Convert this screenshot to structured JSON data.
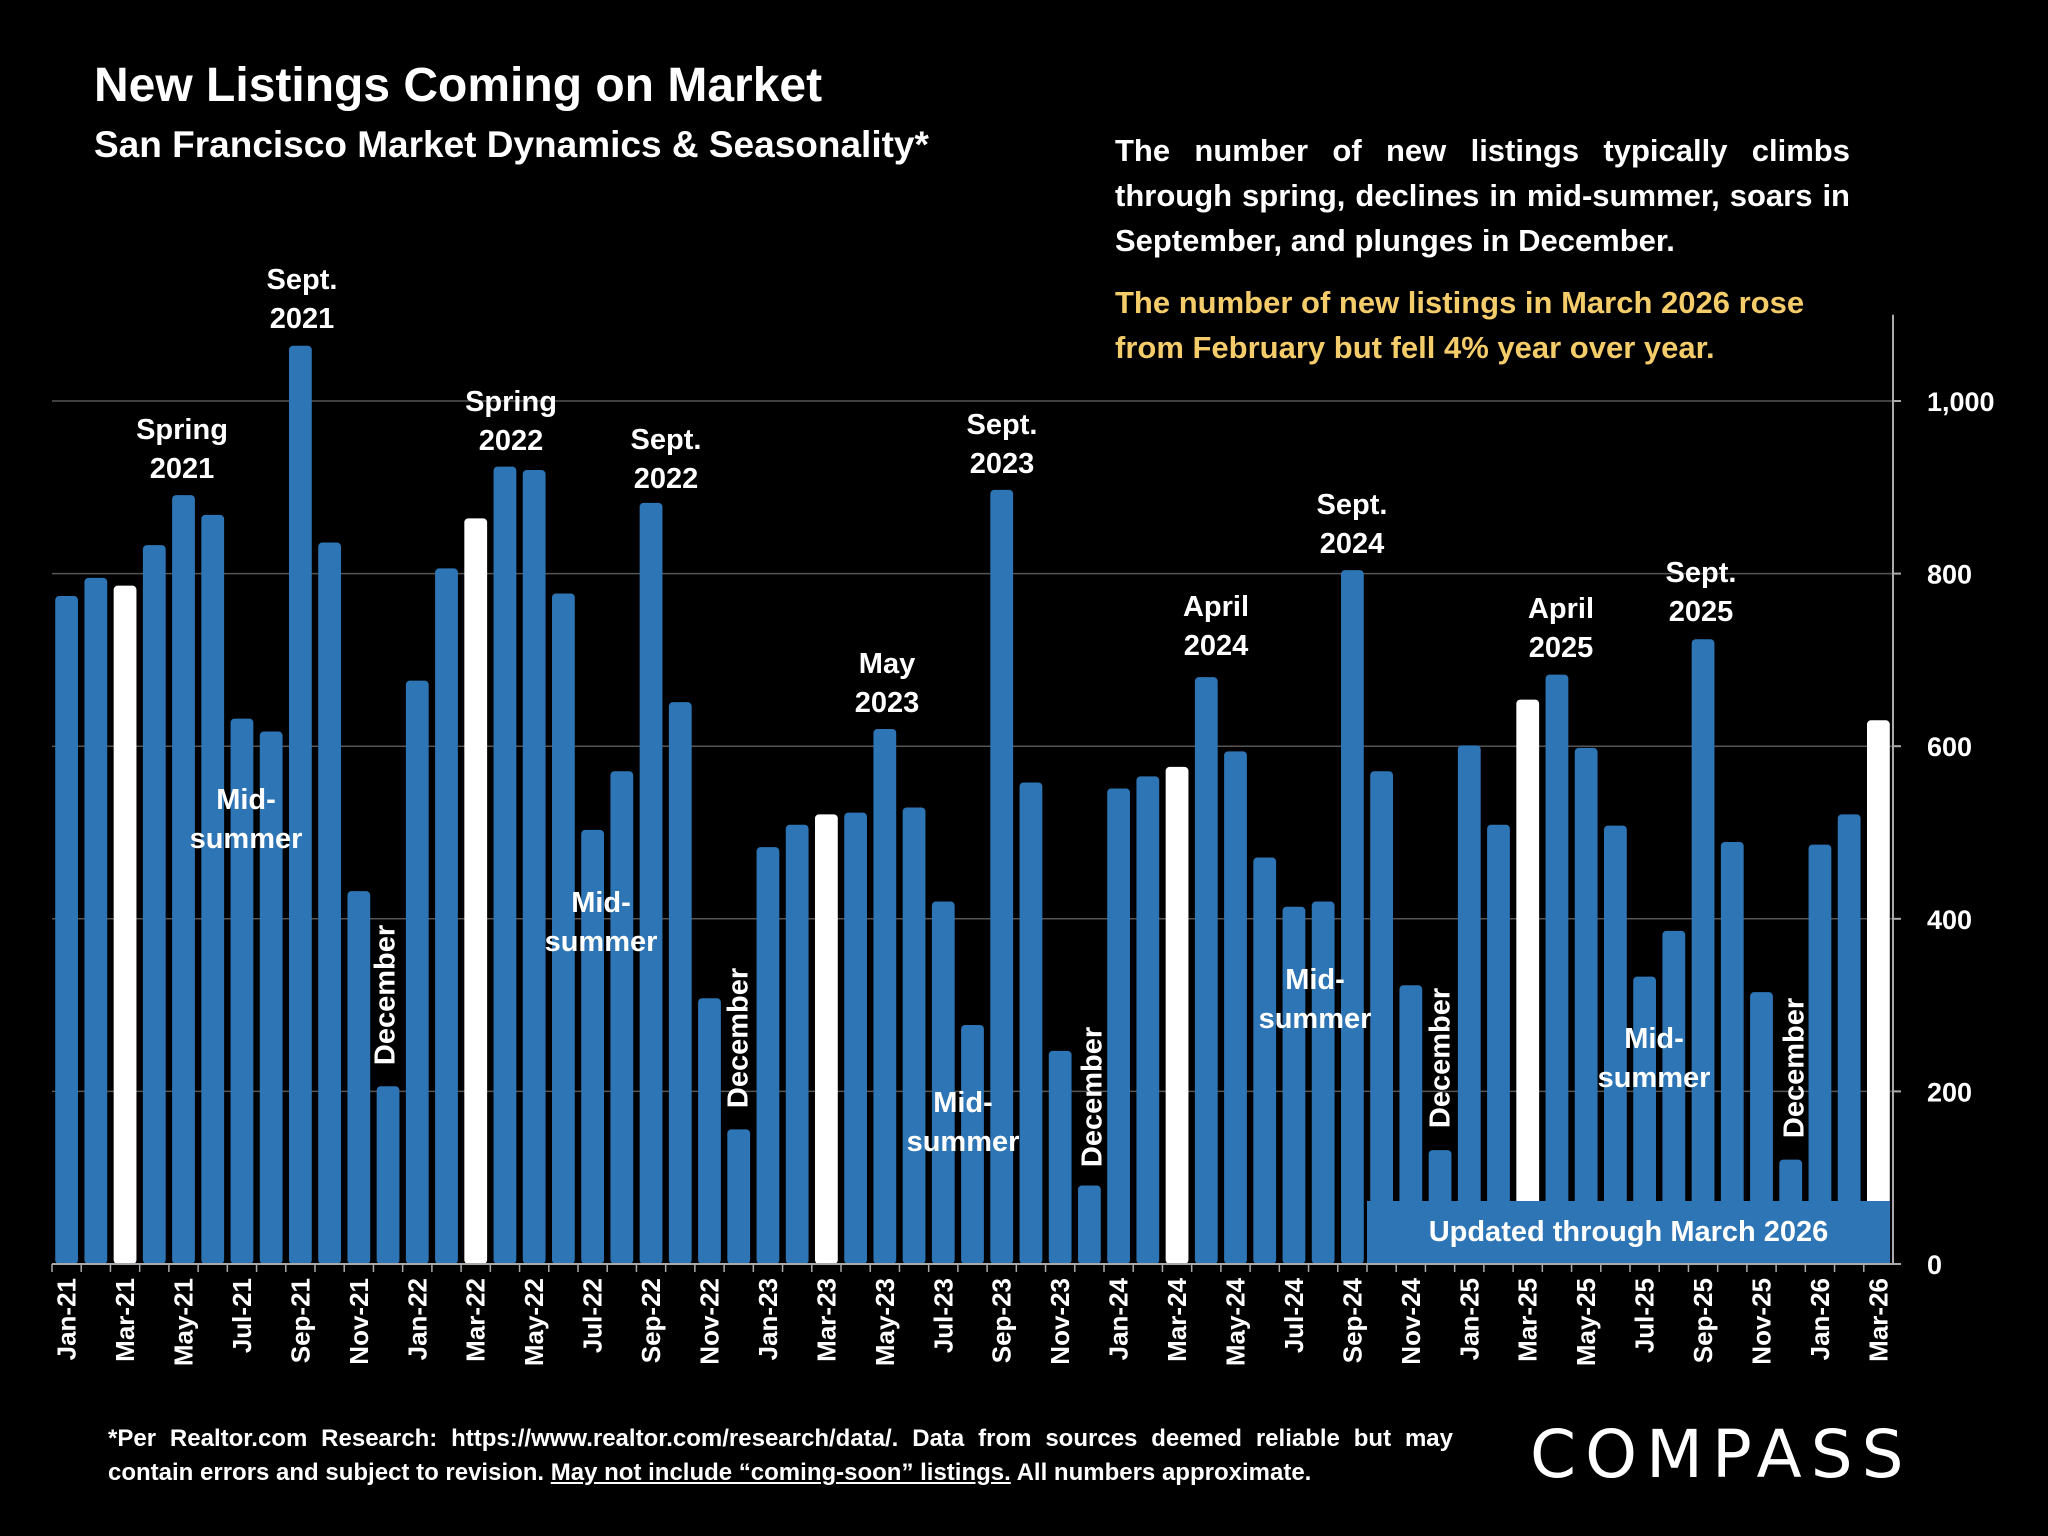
{
  "title": "New Listings Coming on Market",
  "subtitle": "San Francisco Market Dynamics & Seasonality*",
  "description": "The number of new listings typically climbs through spring, declines in mid-summer, soars in September, and plunges in December.",
  "highlight": "The number of new listings in March 2026 rose from February but fell 4% year over year.",
  "updated_label": "Updated through March 2026",
  "footer": {
    "text_a": "*Per Realtor.com Research:  https://www.realtor.com/research/data/. Data from sources deemed reliable but may contain errors and subject to revision. ",
    "underlined": "May not include “coming-soon” listings.",
    "text_b": " All numbers approximate."
  },
  "logo": "COMPASS",
  "colors": {
    "bar": "#2e75b6",
    "highlight_bar": "#ffffff",
    "highlight_text": "#f5cc6a",
    "background": "#000000"
  },
  "chart_data": {
    "type": "bar",
    "title": "New Listings Coming on Market",
    "y_axis_side": "right",
    "ylim": [
      0,
      1100
    ],
    "yticks": [
      0,
      200,
      400,
      600,
      800,
      1000
    ],
    "ytick_labels": [
      "0",
      "200",
      "400",
      "600",
      "800",
      "1,000"
    ],
    "grid": true,
    "categories": [
      "Jan-21",
      "Feb-21",
      "Mar-21",
      "Apr-21",
      "May-21",
      "Jun-21",
      "Jul-21",
      "Aug-21",
      "Sep-21",
      "Oct-21",
      "Nov-21",
      "Dec-21",
      "Jan-22",
      "Feb-22",
      "Mar-22",
      "Apr-22",
      "May-22",
      "Jun-22",
      "Jul-22",
      "Aug-22",
      "Sep-22",
      "Oct-22",
      "Nov-22",
      "Dec-22",
      "Jan-23",
      "Feb-23",
      "Mar-23",
      "Apr-23",
      "May-23",
      "Jun-23",
      "Jul-23",
      "Aug-23",
      "Sep-23",
      "Oct-23",
      "Nov-23",
      "Dec-23",
      "Jan-24",
      "Feb-24",
      "Mar-24",
      "Apr-24",
      "May-24",
      "Jun-24",
      "Jul-24",
      "Aug-24",
      "Sep-24",
      "Oct-24",
      "Nov-24",
      "Dec-24",
      "Jan-25",
      "Feb-25",
      "Mar-25",
      "Apr-25",
      "May-25",
      "Jun-25",
      "Jul-25",
      "Aug-25",
      "Sep-25",
      "Oct-25",
      "Nov-25",
      "Dec-25",
      "Jan-26",
      "Feb-26",
      "Mar-26"
    ],
    "values": [
      774,
      795,
      786,
      833,
      891,
      868,
      632,
      617,
      1064,
      836,
      432,
      206,
      676,
      806,
      864,
      924,
      920,
      777,
      503,
      571,
      882,
      651,
      308,
      156,
      483,
      509,
      521,
      523,
      620,
      529,
      420,
      277,
      897,
      558,
      247,
      91,
      551,
      565,
      576,
      680,
      594,
      471,
      414,
      420,
      804,
      571,
      323,
      132,
      601,
      509,
      654,
      683,
      598,
      508,
      333,
      386,
      724,
      489,
      315,
      121,
      486,
      521,
      630
    ],
    "highlighted": [
      "Mar-21",
      "Mar-22",
      "Mar-23",
      "Mar-24",
      "Mar-25",
      "Mar-26"
    ],
    "annotations": [
      {
        "text": "Spring 2021",
        "lines": [
          "Spring",
          "2021"
        ]
      },
      {
        "text": "Sept. 2021",
        "lines": [
          "Sept.",
          "2021"
        ]
      },
      {
        "text": "Mid-summer",
        "lines": [
          "Mid-",
          "summer"
        ]
      },
      {
        "text": "December",
        "lines": [
          "December"
        ]
      },
      {
        "text": "Spring 2022",
        "lines": [
          "Spring",
          "2022"
        ]
      },
      {
        "text": "Sept. 2022",
        "lines": [
          "Sept.",
          "2022"
        ]
      },
      {
        "text": "Mid-summer",
        "lines": [
          "Mid-",
          "summer"
        ]
      },
      {
        "text": "December",
        "lines": [
          "December"
        ]
      },
      {
        "text": "May 2023",
        "lines": [
          "May",
          "2023"
        ]
      },
      {
        "text": "Sept. 2023",
        "lines": [
          "Sept.",
          "2023"
        ]
      },
      {
        "text": "Mid-summer",
        "lines": [
          "Mid-",
          "summer"
        ]
      },
      {
        "text": "December",
        "lines": [
          "December"
        ]
      },
      {
        "text": "April 2024",
        "lines": [
          "April",
          "2024"
        ]
      },
      {
        "text": "Sept. 2024",
        "lines": [
          "Sept.",
          "2024"
        ]
      },
      {
        "text": "Mid-summer",
        "lines": [
          "Mid-",
          "summer"
        ]
      },
      {
        "text": "December",
        "lines": [
          "December"
        ]
      },
      {
        "text": "April 2025",
        "lines": [
          "April",
          "2025"
        ]
      },
      {
        "text": "Sept. 2025",
        "lines": [
          "Sept.",
          "2025"
        ]
      },
      {
        "text": "Mid-summer",
        "lines": [
          "Mid-",
          "summer"
        ]
      },
      {
        "text": "December",
        "lines": [
          "December"
        ]
      }
    ]
  }
}
